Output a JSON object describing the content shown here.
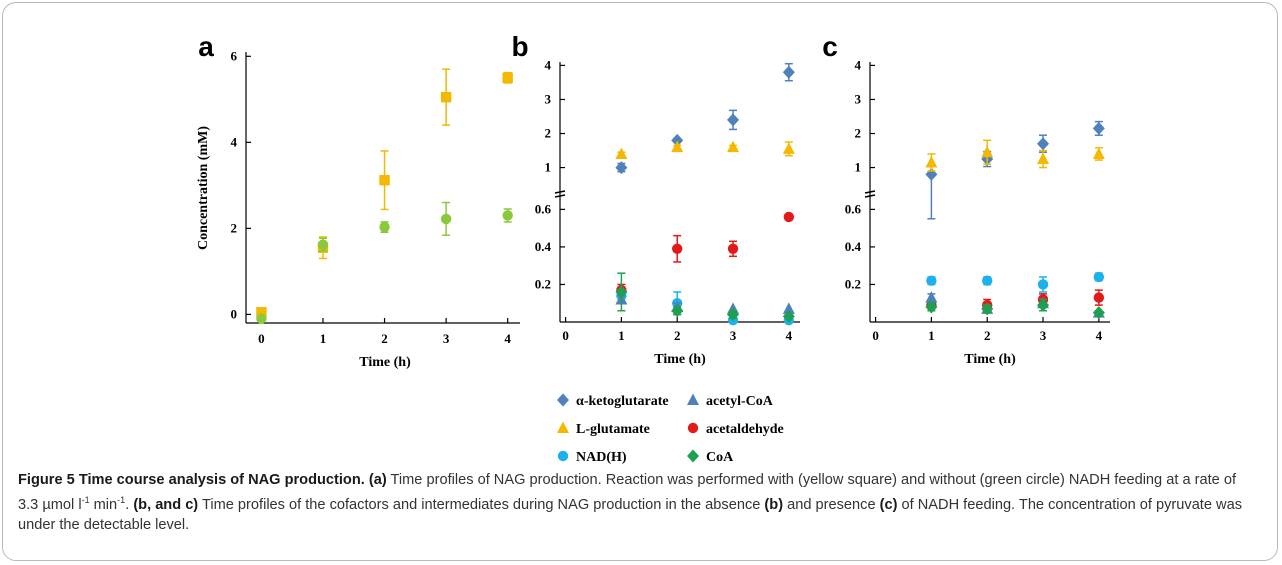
{
  "figure": {
    "caption": {
      "label": "Figure 5",
      "title": "Time course analysis of NAG production.",
      "a_ref": "(a)",
      "a_text": "Time profiles of NAG production. Reaction was performed with (yellow square) and without (green circle) NADH feeding at a rate of 3.3 µmol l",
      "a_sup1": "-1",
      "a_mid": " min",
      "a_sup2": "-1",
      "a_end": ".",
      "bc_ref": "(b, and c)",
      "bc_text": "Time profiles of the cofactors and intermediates during NAG production in the absence",
      "b_ref": "(b)",
      "and_text": "and presence",
      "c_ref": "(c)",
      "final_text": "of NADH feeding. The concentration of pyruvate was under the detectable level."
    }
  },
  "colors": {
    "alpha_ketoglutarate": "#4f81bd",
    "acetyl_coa": "#4f81bd",
    "l_glutamate": "#f5b800",
    "acetaldehyde": "#e21a1a",
    "nadh": "#1cb1ea",
    "coa": "#1fa050",
    "a_yellow": "#f5b800",
    "a_green": "#8cc83c"
  },
  "chart_data": [
    {
      "panel": "a",
      "type": "scatter",
      "xlabel": "Time (h)",
      "ylabel": "Concentration (mM)",
      "xticks": [
        0,
        1,
        2,
        3,
        4
      ],
      "yticks": [
        0,
        2,
        4,
        6
      ],
      "xlim": [
        -0.25,
        4.2
      ],
      "ylim": [
        -0.2,
        6.1
      ],
      "series": [
        {
          "key": "a_yellow",
          "marker": "square",
          "x": [
            0,
            1,
            2,
            3,
            4
          ],
          "y": [
            0.05,
            1.55,
            3.12,
            5.05,
            5.5
          ],
          "err": [
            0.05,
            0.25,
            0.68,
            0.65,
            0.12
          ]
        },
        {
          "key": "a_green",
          "marker": "circle",
          "x": [
            0,
            1,
            2,
            3,
            4
          ],
          "y": [
            -0.1,
            1.62,
            2.03,
            2.22,
            2.3
          ],
          "err": [
            0.05,
            0.15,
            0.12,
            0.38,
            0.15
          ]
        }
      ]
    },
    {
      "panel": "b",
      "type": "scatter",
      "xlabel": "Time (h)",
      "xticks": [
        0,
        1,
        2,
        3,
        4
      ],
      "xlim": [
        -0.1,
        4.2
      ],
      "upper": {
        "yticks": [
          1,
          2,
          3,
          4
        ],
        "ylim": [
          0.4,
          4.1
        ]
      },
      "lower": {
        "yticks": [
          0.2,
          0.4,
          0.6
        ],
        "ylim": [
          0.0,
          0.65
        ]
      },
      "series": [
        {
          "key": "alpha_ketoglutarate",
          "marker": "diamond",
          "x": [
            1,
            2,
            3,
            4
          ],
          "y": [
            1.0,
            1.8,
            2.4,
            3.8
          ],
          "err": [
            0.12,
            0.05,
            0.28,
            0.25
          ]
        },
        {
          "key": "l_glutamate",
          "marker": "triangle",
          "x": [
            1,
            2,
            3,
            4
          ],
          "y": [
            1.4,
            1.6,
            1.6,
            1.55
          ],
          "err": [
            0.05,
            0.05,
            0.05,
            0.2
          ]
        },
        {
          "key": "acetaldehyde",
          "marker": "circle",
          "x": [
            1,
            2,
            3,
            4
          ],
          "y": [
            0.17,
            0.39,
            0.39,
            0.56
          ],
          "err": [
            0.03,
            0.07,
            0.04,
            0.0
          ]
        },
        {
          "key": "nadh",
          "marker": "circle",
          "x": [
            1,
            2,
            3,
            4
          ],
          "y": [
            0.14,
            0.1,
            0.01,
            0.01
          ],
          "err": [
            0.03,
            0.06,
            0.01,
            0.01
          ]
        },
        {
          "key": "acetyl_coa",
          "marker": "triangle",
          "x": [
            1,
            2,
            3,
            4
          ],
          "y": [
            0.12,
            0.08,
            0.07,
            0.07
          ],
          "err": [
            0.02,
            0.02,
            0.0,
            0.0
          ]
        },
        {
          "key": "coa",
          "marker": "diamond",
          "x": [
            1,
            2,
            3,
            4
          ],
          "y": [
            0.16,
            0.06,
            0.04,
            0.03
          ],
          "err": [
            0.1,
            0.02,
            0.02,
            0.01
          ]
        }
      ]
    },
    {
      "panel": "c",
      "type": "scatter",
      "xlabel": "Time (h)",
      "xticks": [
        0,
        1,
        2,
        3,
        4
      ],
      "xlim": [
        -0.1,
        4.2
      ],
      "upper": {
        "yticks": [
          1,
          2,
          3,
          4
        ],
        "ylim": [
          0.4,
          4.1
        ]
      },
      "lower": {
        "yticks": [
          0.2,
          0.4,
          0.6
        ],
        "ylim": [
          0.0,
          0.65
        ]
      },
      "series": [
        {
          "key": "alpha_ketoglutarate",
          "marker": "diamond",
          "x": [
            1,
            2,
            3,
            4
          ],
          "y": [
            0.8,
            1.25,
            1.7,
            2.15
          ],
          "err": [
            0.25,
            0.22,
            0.25,
            0.2
          ]
        },
        {
          "key": "l_glutamate",
          "marker": "triangle",
          "x": [
            1,
            2,
            3,
            4
          ],
          "y": [
            1.15,
            1.45,
            1.25,
            1.4
          ],
          "err": [
            0.25,
            0.35,
            0.25,
            0.18
          ]
        },
        {
          "key": "nadh",
          "marker": "circle",
          "x": [
            1,
            2,
            3,
            4
          ],
          "y": [
            0.22,
            0.22,
            0.2,
            0.24
          ],
          "err": [
            0.02,
            0.02,
            0.04,
            0.02
          ]
        },
        {
          "key": "acetaldehyde",
          "marker": "circle",
          "x": [
            1,
            2,
            3,
            4
          ],
          "y": [
            0.09,
            0.09,
            0.12,
            0.13
          ],
          "err": [
            0.02,
            0.03,
            0.03,
            0.04
          ]
        },
        {
          "key": "acetyl_coa",
          "marker": "triangle",
          "x": [
            1,
            2,
            3,
            4
          ],
          "y": [
            0.13,
            0.07,
            0.1,
            0.05
          ],
          "err": [
            0.02,
            0.02,
            0.02,
            0.0
          ]
        },
        {
          "key": "coa",
          "marker": "diamond",
          "x": [
            1,
            2,
            3,
            4
          ],
          "y": [
            0.08,
            0.07,
            0.09,
            0.05
          ],
          "err": [
            0.02,
            0.02,
            0.03,
            0.0
          ]
        }
      ]
    }
  ],
  "legend": [
    {
      "key": "alpha_ketoglutarate",
      "marker": "diamond",
      "label": "α-ketoglutarate"
    },
    {
      "key": "acetyl_coa",
      "marker": "triangle",
      "label": "acetyl-CoA"
    },
    {
      "key": "l_glutamate",
      "marker": "triangle",
      "label": "L-glutamate"
    },
    {
      "key": "acetaldehyde",
      "marker": "circle",
      "label": "acetaldehyde"
    },
    {
      "key": "nadh",
      "marker": "circle",
      "label": "NAD(H)"
    },
    {
      "key": "coa",
      "marker": "diamond",
      "label": "CoA"
    }
  ]
}
